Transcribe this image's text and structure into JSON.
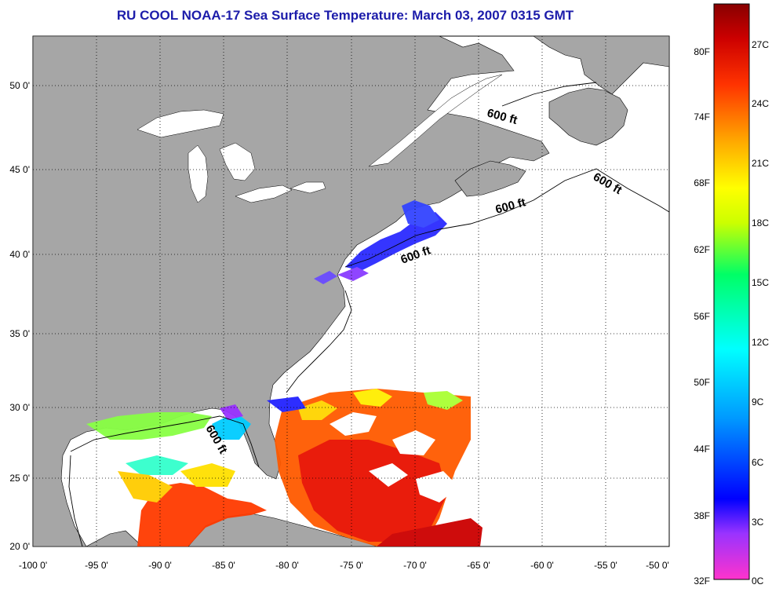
{
  "title": "RU COOL  NOAA-17  Sea Surface Temperature:  March 03, 2007 0315 GMT",
  "lat_labels": [
    "50 0'",
    "45 0'",
    "40 0'",
    "35 0'",
    "30 0'",
    "25 0'",
    "20 0'"
  ],
  "lon_labels": [
    "-100 0'",
    "-95 0'",
    "-90 0'",
    "-85 0'",
    "-80 0'",
    "-75 0'",
    "-70 0'",
    "-65 0'",
    "-60 0'",
    "-55 0'",
    "-50 0'"
  ],
  "contour_label": "600 ft",
  "colorbar": {
    "fahrenheit_labels": [
      "80F",
      "74F",
      "68F",
      "62F",
      "56F",
      "50F",
      "44F",
      "38F",
      "32F"
    ],
    "celsius_labels": [
      "27C",
      "24C",
      "21C",
      "18C",
      "15C",
      "12C",
      "9C",
      "6C",
      "3C",
      "0C"
    ],
    "colors": [
      "#ff33cc",
      "#9933ff",
      "#0000ff",
      "#0099ff",
      "#00ffff",
      "#00ff66",
      "#ccff00",
      "#ffff00",
      "#ffaa00",
      "#ff3300",
      "#cc0000",
      "#880000"
    ]
  },
  "colors": {
    "land": "#a6a6a6",
    "water": "#ffffff",
    "title": "#1c1caa"
  }
}
